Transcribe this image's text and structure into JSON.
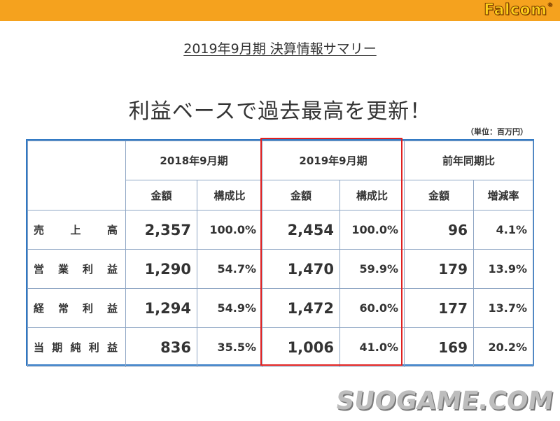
{
  "header": {
    "logo_text": "Falcom",
    "logo_mark": "®"
  },
  "summary_title": "2019年9月期 決算情報サマリー",
  "headline": "利益ベースで過去最高を更新！",
  "unit_note": "（単位：百万円）",
  "table": {
    "groups": [
      "2018年9月期",
      "2019年9月期",
      "前年同期比"
    ],
    "subheaders": [
      "金額",
      "構成比",
      "金額",
      "構成比",
      "金額",
      "増減率"
    ],
    "rows": [
      {
        "label_chars": [
          "売",
          "上",
          "高"
        ],
        "values": [
          "2,357",
          "100.0%",
          "2,454",
          "100.0%",
          "96",
          "4.1%"
        ]
      },
      {
        "label_chars": [
          "営",
          "業",
          "利",
          "益"
        ],
        "values": [
          "1,290",
          "54.7%",
          "1,470",
          "59.9%",
          "179",
          "13.9%"
        ]
      },
      {
        "label_chars": [
          "経",
          "常",
          "利",
          "益"
        ],
        "values": [
          "1,294",
          "54.9%",
          "1,472",
          "60.0%",
          "177",
          "13.7%"
        ]
      },
      {
        "label_chars": [
          "当",
          "期",
          "純",
          "利",
          "益"
        ],
        "values": [
          "836",
          "35.5%",
          "1,006",
          "41.0%",
          "169",
          "20.2%"
        ]
      }
    ]
  },
  "watermark": "SUOGAME.COM",
  "colors": {
    "top_bar": "#f5a21e",
    "table_border": "#2f78c4",
    "highlight": "#e02020"
  }
}
